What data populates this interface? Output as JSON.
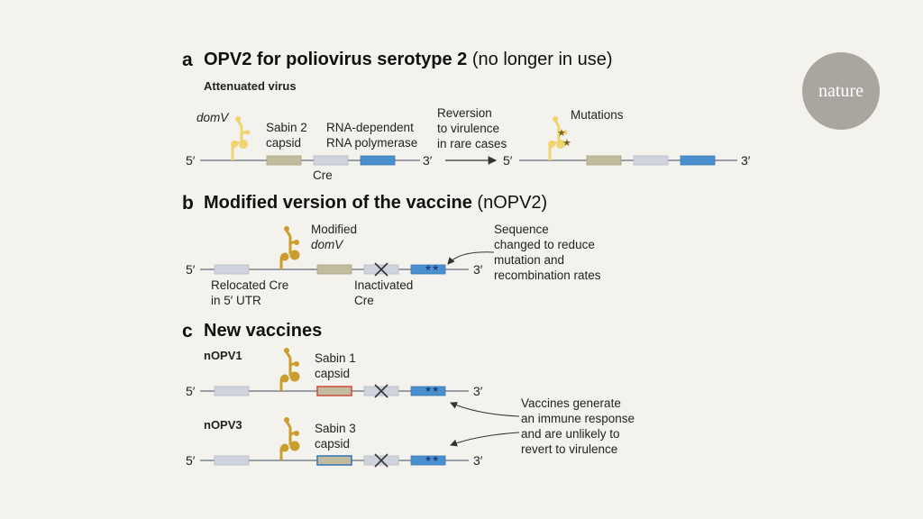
{
  "logo": "nature",
  "panels": {
    "a": {
      "letter": "a",
      "title_bold": "OPV2 for poliovirus serotype 2",
      "title_rest": "(no longer in use)",
      "subtitle": "Attenuated virus",
      "label_domv": "domV",
      "label_sabin2": [
        "Sabin 2",
        "capsid"
      ],
      "label_rdrp": [
        "RNA-dependent",
        "RNA polymerase"
      ],
      "label_cre": "Cre",
      "label_reversion": [
        "Reversion",
        "to virulence",
        "in rare cases"
      ],
      "label_mutations": "Mutations"
    },
    "b": {
      "letter": "b",
      "title_bold": "Modified version of the vaccine",
      "title_rest": "(nOPV2)",
      "label_modified": "Modified",
      "label_domv": "domV",
      "label_relocated": [
        "Relocated Cre",
        "in 5′ UTR"
      ],
      "label_inactivated": [
        "Inactivated",
        "Cre"
      ],
      "label_sequence": [
        "Sequence",
        "changed to reduce",
        "mutation and",
        "recombination rates"
      ]
    },
    "c": {
      "letter": "c",
      "title_bold": "New vaccines",
      "label_nopv1": "nOPV1",
      "label_sabin1": [
        "Sabin 1",
        "capsid"
      ],
      "label_nopv3": "nOPV3",
      "label_sabin3": [
        "Sabin 3",
        "capsid"
      ],
      "label_vaccines": [
        "Vaccines generate",
        "an immune response",
        "and are unlikely to",
        "revert to virulence"
      ]
    }
  },
  "ends": {
    "five": "5′",
    "three": "3′"
  },
  "colors": {
    "background": "#f4f2ec",
    "genome_line": "#9a9ea7",
    "capsid": "#c2bc9f",
    "cre_box": "#cfd3de",
    "polymerase": "#4a8fce",
    "stem_loop": "#c99d2e",
    "stem_loop_light": "#f0d470",
    "sabin1_outline": "#cf4a3b",
    "sabin3_outline": "#2e74b6",
    "logo": "#a9a69f"
  }
}
